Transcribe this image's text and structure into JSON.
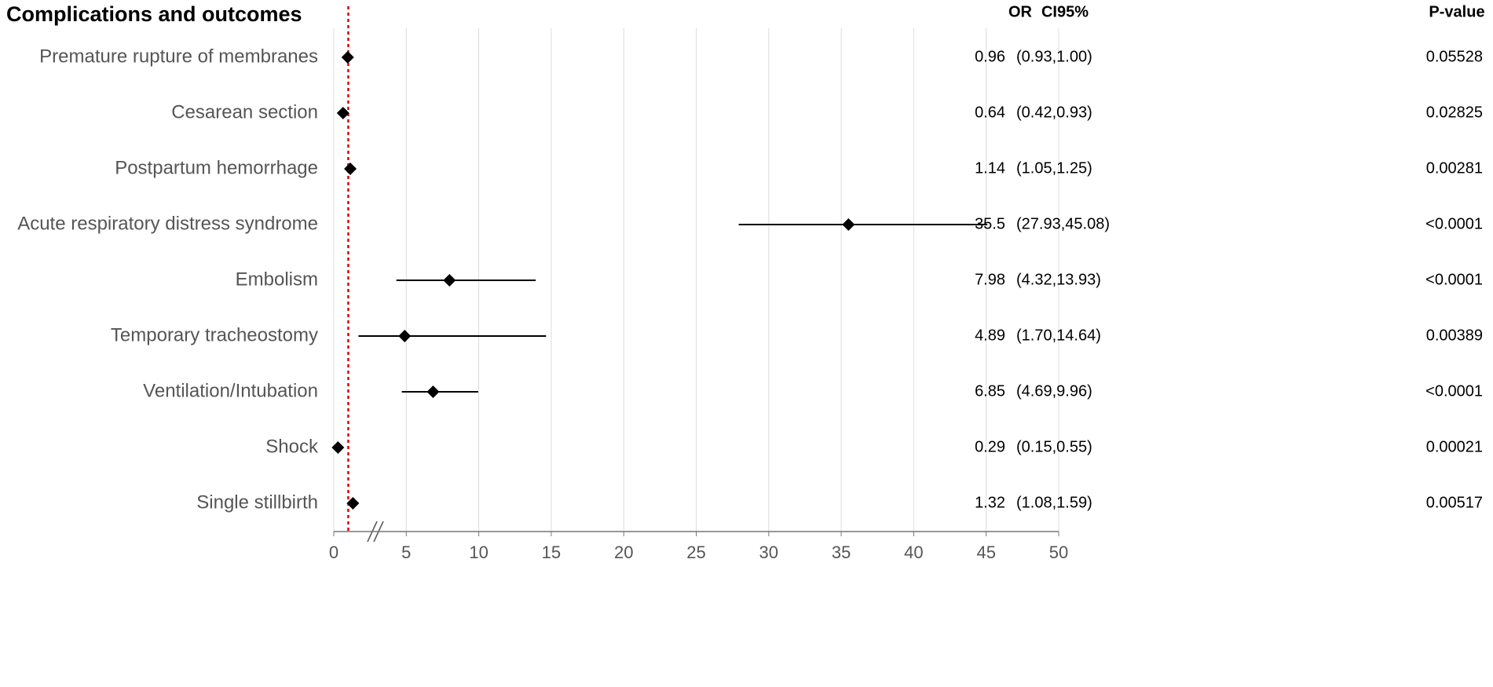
{
  "chart_data": {
    "type": "forest",
    "title": "Complications and outcomes",
    "column_headers": [
      "OR",
      "CI95%",
      "P-value"
    ],
    "categories": [
      "Premature rupture of membranes",
      "Cesarean section",
      "Postpartum hemorrhage",
      "Acute respiratory distress syndrome",
      "Embolism",
      "Temporary tracheostomy",
      "Ventilation/Intubation",
      "Shock",
      "Single stillbirth"
    ],
    "values": [
      0.96,
      0.64,
      1.14,
      35.5,
      7.98,
      4.89,
      6.85,
      0.29,
      1.32
    ],
    "lower": [
      0.93,
      0.42,
      1.05,
      27.93,
      4.32,
      1.7,
      4.69,
      0.15,
      1.08
    ],
    "upper": [
      1.0,
      0.93,
      1.25,
      45.08,
      13.93,
      14.64,
      9.96,
      0.55,
      1.59
    ],
    "ci_labels": [
      "(0.93,1.00)",
      "(0.42,0.93)",
      "(1.05,1.25)",
      "(27.93,45.08)",
      "(4.32,13.93)",
      "(1.70,14.64)",
      "(4.69,9.96)",
      "(0.15,0.55)",
      "(1.08,1.59)"
    ],
    "p_values": [
      "0.05528",
      "0.02825",
      "0.00281",
      "<0.0001",
      "<0.0001",
      "0.00389",
      "<0.0001",
      "0.00021",
      "0.00517"
    ],
    "xlim": [
      0,
      50
    ],
    "xticks": [
      0,
      5,
      10,
      15,
      20,
      25,
      30,
      35,
      40,
      45,
      50
    ],
    "grid": true,
    "color": "#000000",
    "reference_line": 1,
    "reference_color": "#e00000"
  }
}
